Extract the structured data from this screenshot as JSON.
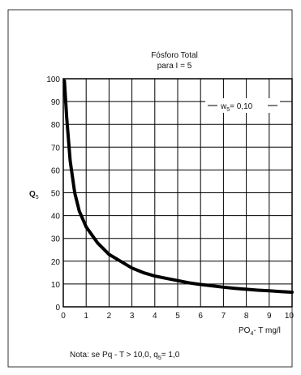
{
  "chart_data": {
    "type": "line",
    "title": "Fósforo Total",
    "subtitle": "para I = 5",
    "xlabel": "PO4- T  mg/l",
    "xlabel_main": "PO",
    "xlabel_sub": "4",
    "xlabel_rest": "- T  mg/l",
    "ylabel_main": "Q",
    "ylabel_sub": "5",
    "xlim": [
      0,
      10
    ],
    "ylim": [
      0,
      100
    ],
    "x_ticks": [
      "0",
      "1",
      "2",
      "3",
      "4",
      "5",
      "6",
      "7",
      "8",
      "9",
      "10"
    ],
    "y_ticks": [
      "0",
      "10",
      "20",
      "30",
      "40",
      "50",
      "60",
      "70",
      "80",
      "90",
      "100"
    ],
    "grid": true,
    "legend": {
      "main": "w",
      "sub": "5",
      "rest": "= 0,10",
      "position": "top-right"
    },
    "note": {
      "prefix": "Nota: se Pq - T > 10,0,  q",
      "sub": "5",
      "suffix": "= 1,0"
    },
    "series": [
      {
        "x": [
          0.05,
          0.15,
          0.3,
          0.5,
          0.7,
          1.0,
          1.5,
          2.0,
          2.5,
          3.0,
          3.5,
          4.0,
          4.5,
          5.0,
          5.5,
          6.0,
          6.5,
          7.0,
          7.5,
          8.0,
          8.5,
          9.0,
          9.5,
          10.0
        ],
        "values": [
          99,
          83,
          64,
          50,
          42,
          35,
          28,
          23,
          20,
          17,
          15,
          13.5,
          12.5,
          11.5,
          10.5,
          9.8,
          9.2,
          8.6,
          8.1,
          7.7,
          7.3,
          7.0,
          6.7,
          6.4
        ]
      }
    ]
  }
}
